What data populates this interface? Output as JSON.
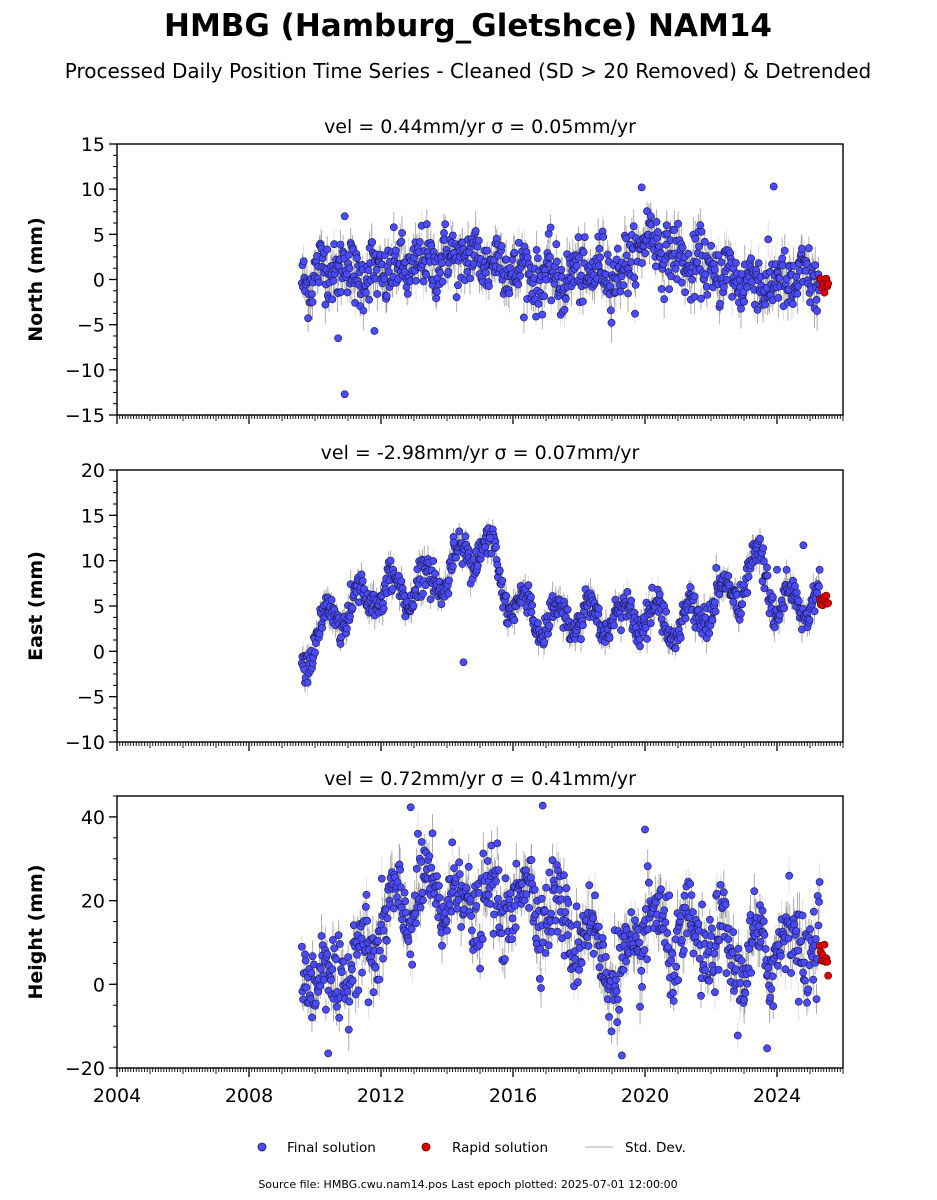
{
  "title": "HMBG (Hamburg_Gletshce) NAM14",
  "subtitle": "Processed Daily Position Time Series - Cleaned (SD > 20 Removed) & Detrended",
  "legend": {
    "final": "Final solution",
    "rapid": "Rapid solution",
    "std": "Std. Dev.",
    "placement": "bottom-center"
  },
  "footer": "Source file: HMBG.cwu.nam14.pos  Last epoch plotted: 2025-07-01 12:00:00",
  "colors": {
    "final": "#4a4aff",
    "rapid": "#e00000",
    "std": "#555555",
    "edge": "#1a1a40"
  },
  "chart_data": [
    {
      "type": "scatter",
      "panel": "north",
      "title": "vel = 0.44mm/yr   σ = 0.05mm/yr",
      "ylabel": "North (mm)",
      "xlim": [
        2004,
        2026
      ],
      "ylim": [
        -15,
        15
      ],
      "yticks": [
        "15",
        "10",
        "5",
        "0",
        "−5",
        "−10",
        "−15"
      ],
      "ytick_values": [
        15,
        10,
        5,
        0,
        -5,
        -10,
        -15
      ],
      "xticks": [],
      "grid": false,
      "data_start": 2009.6,
      "data_end": 2025.3,
      "rapid_start": 2025.3,
      "rapid_end": 2025.55,
      "series": [
        {
          "name": "Final solution",
          "note": "daily positions, 2009.6–2025.3, mostly within −5 to 7 mm; outliers near 10.3 (2019.9, 2023.9), 7.0 (2010.9) and −12.7 (2010.9)"
        },
        {
          "name": "Rapid solution",
          "note": "2025.3–2025.55, values −1.7 to 0.3 mm"
        }
      ],
      "x_sample": [
        2009.7,
        2010.5,
        2011.5,
        2012.5,
        2013.5,
        2014.5,
        2015.5,
        2016.5,
        2017.5,
        2018.5,
        2019.5,
        2020.0,
        2021.0,
        2022.0,
        2023.0,
        2024.0,
        2025.0
      ],
      "y_sample": [
        0.0,
        1.5,
        0.5,
        1.0,
        2.0,
        2.5,
        2.0,
        0.5,
        0.0,
        1.0,
        1.0,
        5.0,
        2.0,
        1.0,
        0.0,
        -0.5,
        0.0
      ]
    },
    {
      "type": "scatter",
      "panel": "east",
      "title": "vel = -2.98mm/yr   σ = 0.07mm/yr",
      "ylabel": "East (mm)",
      "xlim": [
        2004,
        2026
      ],
      "ylim": [
        -10,
        20
      ],
      "yticks": [
        "20",
        "15",
        "10",
        "5",
        "0",
        "−5",
        "−10"
      ],
      "ytick_values": [
        20,
        15,
        10,
        5,
        0,
        -5,
        -10
      ],
      "xticks": [],
      "grid": false,
      "data_start": 2009.6,
      "data_end": 2025.3,
      "rapid_start": 2025.3,
      "rapid_end": 2025.55,
      "series": [
        {
          "name": "Final solution",
          "note": "annual oscillation amplitude ~3 mm; starts near −2 mm in 2009.6, peaks ~12 mm in 2014.5 and 2015.2, ~10 mm in 2023.5"
        },
        {
          "name": "Rapid solution",
          "note": "2025.3–2025.55, values 5 to 6.5 mm"
        }
      ],
      "x_sample": [
        2009.6,
        2010.0,
        2011.0,
        2012.0,
        2013.0,
        2014.0,
        2014.5,
        2015.2,
        2016.0,
        2017.0,
        2018.0,
        2019.0,
        2020.0,
        2021.0,
        2022.0,
        2023.0,
        2023.5,
        2024.0,
        2025.0
      ],
      "y_sample": [
        -2.0,
        2.0,
        5.0,
        6.5,
        7.0,
        8.5,
        11.0,
        11.5,
        5.0,
        3.5,
        4.0,
        3.5,
        4.0,
        3.0,
        5.0,
        7.5,
        10.0,
        5.0,
        5.5
      ]
    },
    {
      "type": "scatter",
      "panel": "height",
      "title": "vel = 0.72mm/yr   σ = 0.41mm/yr",
      "ylabel": "Height (mm)",
      "xlim": [
        2004,
        2026
      ],
      "ylim": [
        -20,
        45
      ],
      "yticks": [
        "40",
        "20",
        "0",
        "−20"
      ],
      "ytick_values": [
        40,
        20,
        0,
        -20
      ],
      "xticks": [
        "2004",
        "2008",
        "2012",
        "2016",
        "2020",
        "2024"
      ],
      "xtick_values": [
        2004,
        2008,
        2012,
        2016,
        2020,
        2024
      ],
      "grid": false,
      "data_start": 2009.6,
      "data_end": 2025.3,
      "rapid_start": 2025.3,
      "rapid_end": 2025.55,
      "series": [
        {
          "name": "Final solution",
          "note": "strong annual signal, amplitude ~10 mm, values roughly −17 to 42 mm; maxima ~42 mm in 2012.9 and 2016.9"
        },
        {
          "name": "Rapid solution",
          "note": "2025.3–2025.55, values 2 to 10 mm"
        }
      ],
      "x_sample": [
        2009.6,
        2010.5,
        2011.5,
        2012.5,
        2013.5,
        2014.5,
        2015.5,
        2016.5,
        2017.5,
        2018.5,
        2019.3,
        2020.0,
        2021.0,
        2022.0,
        2023.0,
        2024.0,
        2025.0
      ],
      "y_sample": [
        5.0,
        0.0,
        8.0,
        18.0,
        22.0,
        20.0,
        18.0,
        22.0,
        15.0,
        10.0,
        0.0,
        15.0,
        10.0,
        10.0,
        5.0,
        10.0,
        10.0
      ]
    }
  ]
}
